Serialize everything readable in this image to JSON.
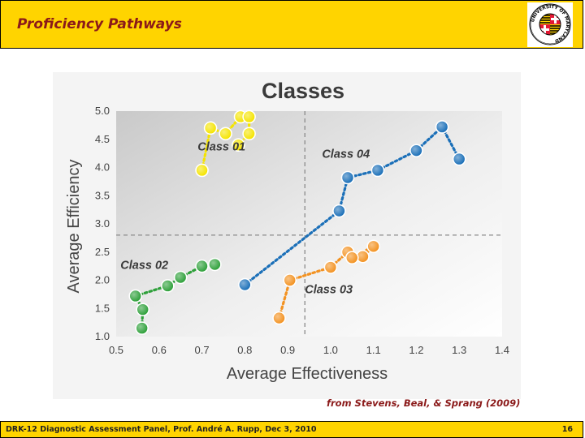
{
  "header": {
    "title": "Proficiency Pathways"
  },
  "citation": "from Stevens, Beal, & Sprang (2009)",
  "footer": {
    "text": "DRK-12 Diagnostic Assessment Panel, Prof. André A. Rupp, Dec 3, 2010",
    "page": "16"
  },
  "logo": {
    "ring_text": "UNIVERSITY OF MARYLAND",
    "colors": [
      "#e21833",
      "#ffd200",
      "#000000",
      "#ffffff"
    ]
  },
  "chart_data": {
    "type": "line",
    "title": "Classes",
    "xlabel": "Average Effectiveness",
    "ylabel": "Average Efficiency",
    "xlim": [
      0.5,
      1.4
    ],
    "ylim": [
      1.0,
      5.0
    ],
    "xticks": [
      "0.5",
      "0.6",
      "0.7",
      "0.8",
      "0.9",
      "1.0",
      "1.1",
      "1.2",
      "1.3",
      "1.4"
    ],
    "yticks": [
      "1.0",
      "1.5",
      "2.0",
      "2.5",
      "3.0",
      "3.5",
      "4.0",
      "4.5",
      "5.0"
    ],
    "grid": false,
    "reference_lines": {
      "x": 0.94,
      "y": 2.8
    },
    "series": [
      {
        "name": "Class 01",
        "color": "#f5e400",
        "points": [
          [
            0.7,
            3.95
          ],
          [
            0.72,
            4.7
          ],
          [
            0.755,
            4.6
          ],
          [
            0.79,
            4.9
          ],
          [
            0.81,
            4.9
          ],
          [
            0.81,
            4.6
          ],
          [
            0.785,
            4.4
          ]
        ]
      },
      {
        "name": "Class 02",
        "color": "#2ea03a",
        "points": [
          [
            0.56,
            1.15
          ],
          [
            0.562,
            1.48
          ],
          [
            0.545,
            1.72
          ],
          [
            0.62,
            1.9
          ],
          [
            0.65,
            2.05
          ],
          [
            0.7,
            2.25
          ],
          [
            0.73,
            2.28
          ]
        ]
      },
      {
        "name": "Class 03",
        "color": "#f39221",
        "points": [
          [
            0.88,
            1.33
          ],
          [
            0.905,
            2.0
          ],
          [
            1.0,
            2.23
          ],
          [
            1.04,
            2.5
          ],
          [
            1.075,
            2.42
          ],
          [
            1.1,
            2.6
          ],
          [
            1.05,
            2.4
          ]
        ]
      },
      {
        "name": "Class 04",
        "color": "#1a6fb8",
        "points": [
          [
            0.8,
            1.92
          ],
          [
            1.02,
            3.23
          ],
          [
            1.04,
            3.82
          ],
          [
            1.11,
            3.95
          ],
          [
            1.2,
            4.3
          ],
          [
            1.26,
            4.72
          ],
          [
            1.3,
            4.15
          ]
        ]
      }
    ]
  }
}
